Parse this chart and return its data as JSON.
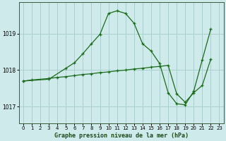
{
  "title": "Graphe pression niveau de la mer (hPa)",
  "background_color": "#ceeaea",
  "grid_color": "#aacfcf",
  "line_color": "#1a6b1a",
  "xlim": [
    -0.5,
    23.5
  ],
  "ylim": [
    1016.55,
    1019.85
  ],
  "yticks": [
    1017,
    1018,
    1019
  ],
  "xticks": [
    0,
    1,
    2,
    3,
    4,
    5,
    6,
    7,
    8,
    9,
    10,
    11,
    12,
    13,
    14,
    15,
    16,
    17,
    18,
    19,
    20,
    21,
    22,
    23
  ],
  "line1_x": [
    0,
    3,
    5,
    6,
    7,
    8,
    9,
    10,
    11,
    12,
    13,
    14,
    15,
    16,
    17,
    18,
    19,
    20,
    21,
    22
  ],
  "line1_y": [
    1017.7,
    1017.75,
    1018.05,
    1018.2,
    1018.45,
    1018.72,
    1018.98,
    1019.55,
    1019.62,
    1019.55,
    1019.28,
    1018.72,
    1018.52,
    1018.18,
    1017.38,
    1017.08,
    1017.05,
    1017.42,
    1018.28,
    1019.12
  ],
  "line2_x": [
    0,
    1,
    3,
    4,
    5,
    6,
    7,
    8,
    9,
    10,
    11,
    12,
    13,
    14,
    15,
    16,
    17,
    18,
    19,
    20,
    21,
    22
  ],
  "line2_y": [
    1017.7,
    1017.73,
    1017.77,
    1017.8,
    1017.82,
    1017.85,
    1017.88,
    1017.9,
    1017.93,
    1017.95,
    1017.98,
    1018.0,
    1018.03,
    1018.05,
    1018.08,
    1018.1,
    1018.13,
    1017.35,
    1017.12,
    1017.38,
    1017.58,
    1018.3
  ]
}
